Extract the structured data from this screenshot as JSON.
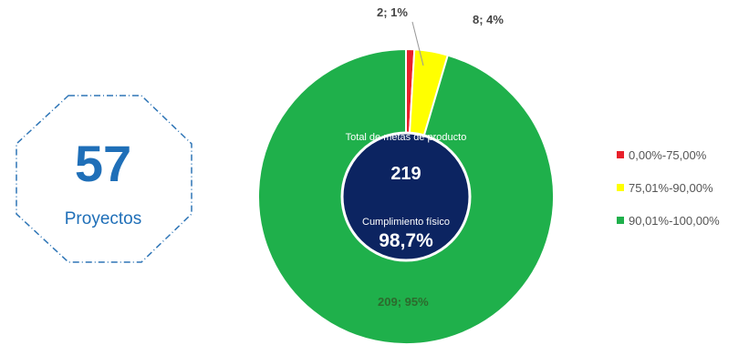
{
  "projects": {
    "number": "57",
    "label": "Proyectos"
  },
  "center": {
    "title": "Total de metas de producto",
    "total": "219",
    "subtitle": "Cumplimiento físico",
    "percent": "98,7%"
  },
  "chart_data": {
    "type": "pie",
    "categories": [
      "0,00%-75,00%",
      "75,01%-90,00%",
      "90,01%-100,00%"
    ],
    "values": [
      2,
      8,
      209
    ],
    "data_labels": [
      "2; 1%",
      "8; 4%",
      "209; 95%"
    ],
    "colors": [
      "#e8202a",
      "#ffff00",
      "#1fb04b"
    ],
    "legend": "right"
  }
}
